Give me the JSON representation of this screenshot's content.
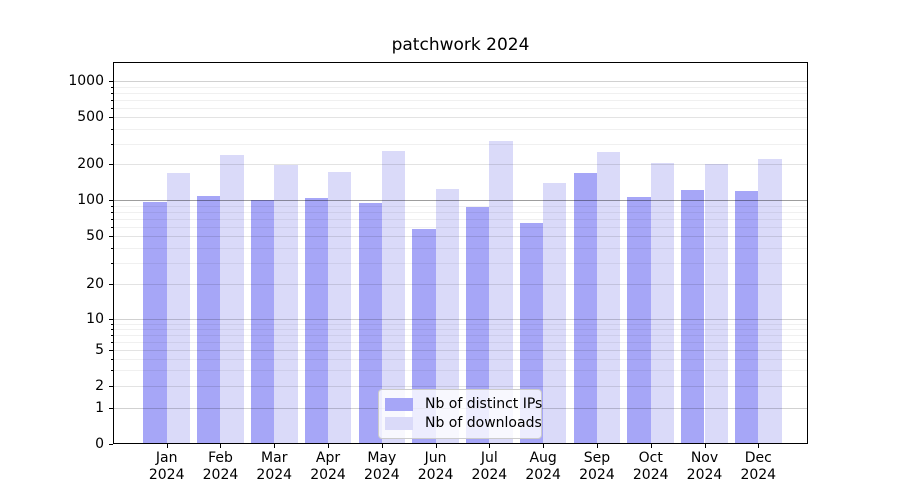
{
  "title": "patchwork 2024",
  "chart_data": {
    "type": "bar",
    "title": "patchwork 2024",
    "categories": [
      "Jan 2024",
      "Feb 2024",
      "Mar 2024",
      "Apr 2024",
      "May 2024",
      "Jun 2024",
      "Jul 2024",
      "Aug 2024",
      "Sep 2024",
      "Oct 2024",
      "Nov 2024",
      "Dec 2024"
    ],
    "series": [
      {
        "name": "Nb of distinct IPs",
        "color": "#a6a6f7",
        "values": [
          97,
          108,
          100,
          104,
          95,
          57,
          87,
          64,
          170,
          107,
          122,
          119
        ]
      },
      {
        "name": "Nb of downloads",
        "color": "#dadaf9",
        "values": [
          171,
          242,
          198,
          172,
          258,
          124,
          318,
          141,
          254,
          207,
          200,
          221
        ]
      }
    ],
    "xlabel": "",
    "ylabel": "",
    "yscale": "symlog",
    "ylim": [
      0,
      1450
    ],
    "yticks_labeled": [
      0,
      1,
      2,
      5,
      10,
      20,
      50,
      100,
      200,
      500,
      1000
    ],
    "yticks_minor": [
      3,
      4,
      6,
      7,
      8,
      9,
      30,
      40,
      60,
      70,
      80,
      90,
      300,
      400,
      600,
      700,
      800,
      900
    ],
    "grid": true,
    "emphasis_gridline": 100,
    "legend_position": "lower center",
    "axis_color": "#000000",
    "background_color": "#ffffff"
  }
}
